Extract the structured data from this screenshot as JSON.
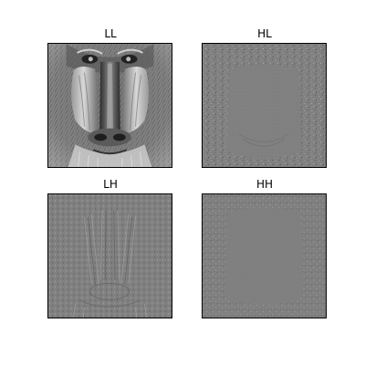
{
  "panels": [
    {
      "title": "LL",
      "kind": "approximation"
    },
    {
      "title": "HL",
      "kind": "horizontal-detail"
    },
    {
      "title": "LH",
      "kind": "vertical-detail"
    },
    {
      "title": "HH",
      "kind": "diagonal-detail"
    }
  ],
  "colors": {
    "background": "#ffffff",
    "detail-gray": "#808080",
    "frame": "#000000"
  }
}
